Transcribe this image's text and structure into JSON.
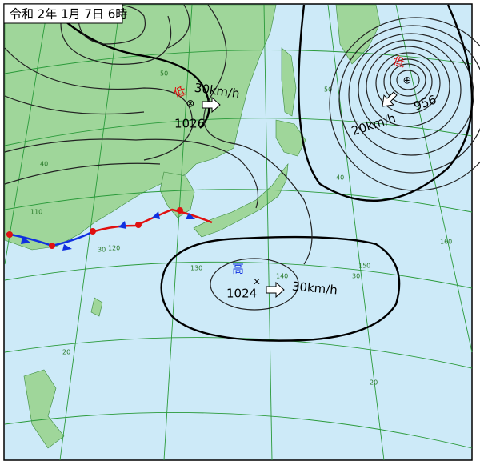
{
  "title": "令和 2年 1月 7日 6時",
  "systems": [
    {
      "kind": "低",
      "pressure": "1026",
      "motion": "30km/h"
    },
    {
      "kind": "低",
      "pressure": "956",
      "motion": "20km/h"
    },
    {
      "kind": "高",
      "pressure": "1024",
      "motion": "30km/h"
    }
  ],
  "grid_labels": [
    "50",
    "40",
    "30",
    "20",
    "110",
    "120",
    "130",
    "140",
    "150",
    "160",
    "50",
    "40",
    "30",
    "20"
  ]
}
